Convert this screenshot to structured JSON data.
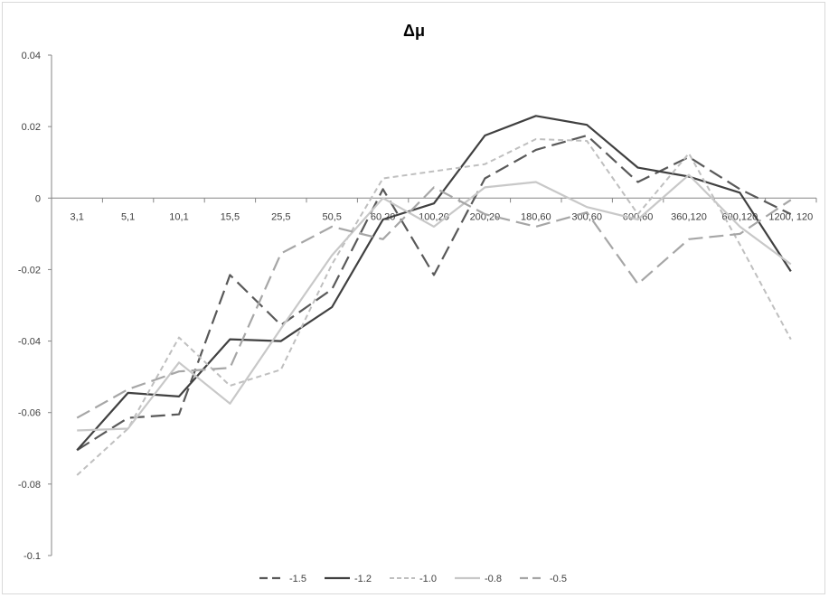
{
  "chart_data": {
    "type": "line",
    "title": "Δμ",
    "xlabel": "",
    "ylabel": "",
    "ylim": [
      -0.1,
      0.04
    ],
    "yticks": [
      0.04,
      0.02,
      0,
      -0.02,
      -0.04,
      -0.06,
      -0.08,
      -0.1
    ],
    "ytick_labels": [
      "0.04",
      "0.02",
      "0",
      "-0.02",
      "-0.04",
      "-0.06",
      "-0.08",
      "-0.1"
    ],
    "categories": [
      "3,1",
      "5,1",
      "10,1",
      "15,5",
      "25,5",
      "50,5",
      "60,20",
      "100,20",
      "200,20",
      "180,60",
      "300,60",
      "600,60",
      "360,120",
      "600,120",
      "1200, 120"
    ],
    "grid": false,
    "legend_position": "bottom",
    "series": [
      {
        "name": "-1.5",
        "color": "#595959",
        "dash": "long-dash",
        "width": 2.2,
        "values": [
          -0.0705,
          -0.0615,
          -0.0605,
          -0.0215,
          -0.0355,
          -0.0255,
          0.0025,
          -0.0215,
          0.0055,
          0.0135,
          0.0175,
          0.0045,
          0.0115,
          0.0025,
          -0.0045
        ]
      },
      {
        "name": "-1.2",
        "color": "#404040",
        "dash": "solid",
        "width": 2.2,
        "values": [
          -0.0705,
          -0.0545,
          -0.0555,
          -0.0395,
          -0.04,
          -0.0305,
          -0.006,
          -0.0015,
          0.0175,
          0.023,
          0.0205,
          0.0085,
          0.006,
          0.0015,
          -0.0205
        ]
      },
      {
        "name": "-1.0",
        "color": "#bfbfbf",
        "dash": "short-dash",
        "width": 2,
        "values": [
          -0.0775,
          -0.0645,
          -0.039,
          -0.0525,
          -0.048,
          -0.0185,
          0.0055,
          0.0075,
          0.0095,
          0.0165,
          0.016,
          -0.0045,
          0.0125,
          -0.013,
          -0.0395
        ]
      },
      {
        "name": "-0.8",
        "color": "#c8c8c8",
        "dash": "solid",
        "width": 2.2,
        "values": [
          -0.065,
          -0.0645,
          -0.046,
          -0.0575,
          -0.0365,
          -0.016,
          0.0,
          -0.008,
          0.003,
          0.0045,
          -0.0025,
          -0.006,
          0.0065,
          -0.008,
          -0.0185
        ]
      },
      {
        "name": "-0.5",
        "color": "#a6a6a6",
        "dash": "long-dash",
        "width": 2.2,
        "values": [
          -0.0615,
          -0.0535,
          -0.0485,
          -0.0475,
          -0.0155,
          -0.008,
          -0.0115,
          0.003,
          -0.0045,
          -0.008,
          -0.004,
          -0.024,
          -0.0115,
          -0.01,
          -0.0005
        ]
      }
    ]
  }
}
